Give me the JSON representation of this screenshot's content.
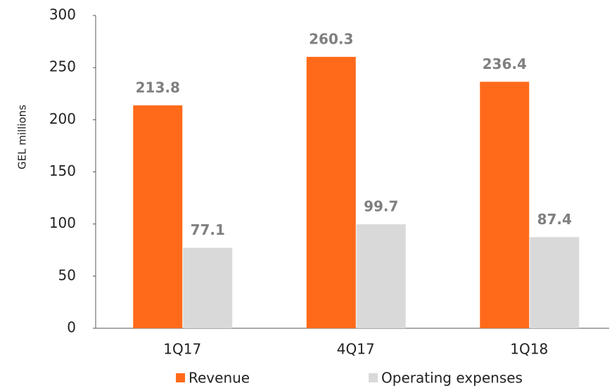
{
  "chart_data": {
    "type": "bar",
    "y_label": "GEL millions",
    "categories": [
      "1Q17",
      "4Q17",
      "1Q18"
    ],
    "series": [
      {
        "name": "Revenue",
        "color": "#ff6a1a",
        "values": [
          213.8,
          260.3,
          236.4
        ]
      },
      {
        "name": "Operating expenses",
        "color": "#d9d9d9",
        "values": [
          77.1,
          99.7,
          87.4
        ]
      }
    ],
    "ylim": [
      0,
      300
    ],
    "yticks": [
      0,
      50,
      100,
      150,
      200,
      250,
      300
    ],
    "legend": "bottom"
  }
}
